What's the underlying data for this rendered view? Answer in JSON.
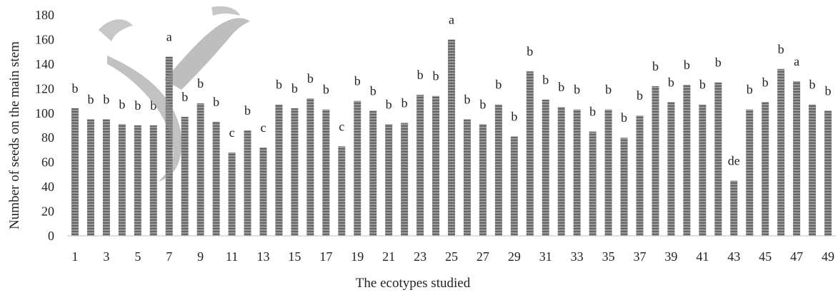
{
  "chart_data": {
    "type": "bar",
    "title": "",
    "xlabel": "The ecotypes studied",
    "ylabel": "Number of seeds on the main stem",
    "ylim": [
      0,
      180
    ],
    "yticks": [
      0,
      20,
      40,
      60,
      80,
      100,
      120,
      140,
      160,
      180
    ],
    "categories": [
      "1",
      "2",
      "3",
      "4",
      "5",
      "6",
      "7",
      "8",
      "9",
      "10",
      "11",
      "12",
      "13",
      "14",
      "15",
      "16",
      "17",
      "18",
      "19",
      "20",
      "21",
      "22",
      "23",
      "24",
      "25",
      "26",
      "27",
      "28",
      "29",
      "30",
      "31",
      "32",
      "33",
      "34",
      "35",
      "36",
      "37",
      "38",
      "39",
      "40",
      "41",
      "42",
      "43",
      "44",
      "45",
      "46",
      "47",
      "48",
      "49"
    ],
    "xtick_labels": [
      "1",
      "3",
      "5",
      "7",
      "9",
      "11",
      "13",
      "15",
      "17",
      "19",
      "21",
      "23",
      "25",
      "27",
      "29",
      "31",
      "33",
      "35",
      "37",
      "39",
      "41",
      "43",
      "45",
      "47",
      "49"
    ],
    "values": [
      104,
      95,
      95,
      91,
      90,
      90,
      146,
      97,
      108,
      93,
      68,
      86,
      72,
      107,
      104,
      112,
      103,
      73,
      110,
      102,
      91,
      92,
      115,
      114,
      160,
      95,
      91,
      107,
      81,
      134,
      111,
      105,
      103,
      85,
      103,
      80,
      98,
      122,
      109,
      123,
      107,
      125,
      45,
      103,
      109,
      136,
      126,
      107,
      102
    ],
    "letters": [
      "b",
      "b",
      "b",
      "b",
      "b",
      "b",
      "a",
      "b",
      "b",
      "b",
      "c",
      "b",
      "c",
      "b",
      "b",
      "b",
      "b",
      "c",
      "b",
      "b",
      "b",
      "b",
      "b",
      "b",
      "a",
      "b",
      "b",
      "b",
      "b",
      "b",
      "b",
      "b",
      "b",
      "b",
      "b",
      "b",
      "b",
      "b",
      "b",
      "b",
      "b",
      "b",
      "de",
      "b",
      "b",
      "b",
      "a",
      "b",
      "b"
    ],
    "bar_color": "#808080",
    "grid": false
  }
}
